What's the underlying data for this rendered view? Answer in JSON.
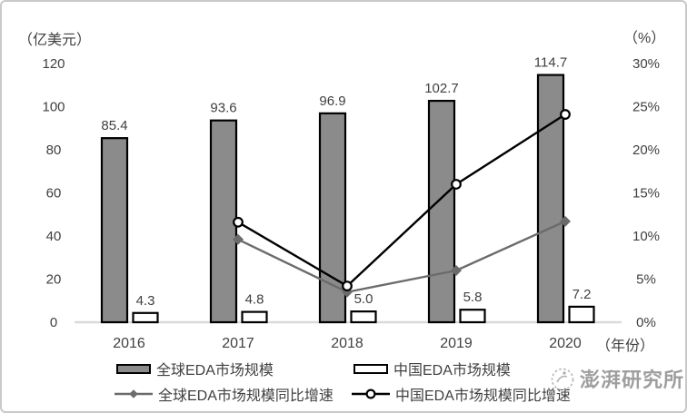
{
  "colors": {
    "bar_global_fill": "#8b8b8b",
    "bar_china_fill": "#ffffff",
    "bar_border": "#000000",
    "line_global": "#6b6b6b",
    "line_china": "#000000",
    "axis_line": "#d9d9d9",
    "label_text": "#404040",
    "watermark_text": "#9e9e9e"
  },
  "chart_data": {
    "type": "combo-bar-line",
    "categories": [
      "2016",
      "2017",
      "2018",
      "2019",
      "2020"
    ],
    "series": [
      {
        "name": "全球EDA市场规模",
        "type": "bar",
        "axis": "left",
        "fill_key": "bar_global_fill",
        "values": [
          85.4,
          93.6,
          96.9,
          102.7,
          114.7
        ],
        "data_labels": [
          "85.4",
          "93.6",
          "96.9",
          "102.7",
          "114.7"
        ]
      },
      {
        "name": "中国EDA市场规模",
        "type": "bar",
        "axis": "left",
        "fill_key": "bar_china_fill",
        "values": [
          4.3,
          4.8,
          5.0,
          5.8,
          7.2
        ],
        "data_labels": [
          "4.3",
          "4.8",
          "5.0",
          "5.8",
          "7.2"
        ]
      },
      {
        "name": "全球EDA市场规模同比增速",
        "type": "line",
        "axis": "right",
        "marker": "diamond",
        "color_key": "line_global",
        "values": [
          null,
          9.6,
          3.5,
          6.0,
          11.7
        ]
      },
      {
        "name": "中国EDA市场规模同比增速",
        "type": "line",
        "axis": "right",
        "marker": "circle",
        "color_key": "line_china",
        "values": [
          null,
          11.6,
          4.2,
          16.0,
          24.1
        ]
      }
    ],
    "left_axis": {
      "unit": "（亿美元）",
      "min": 0,
      "max": 120,
      "step": 20,
      "ticks": [
        "0",
        "20",
        "40",
        "60",
        "80",
        "100",
        "120"
      ]
    },
    "right_axis": {
      "unit": "（%）",
      "min": 0,
      "max": 30,
      "step": 5,
      "ticks": [
        "0%",
        "5%",
        "10%",
        "15%",
        "20%",
        "25%",
        "30%"
      ]
    },
    "x_axis": {
      "unit": "（年份）"
    },
    "grid": "off",
    "legend_position": "bottom"
  },
  "watermark": {
    "text": "澎湃研究所"
  }
}
